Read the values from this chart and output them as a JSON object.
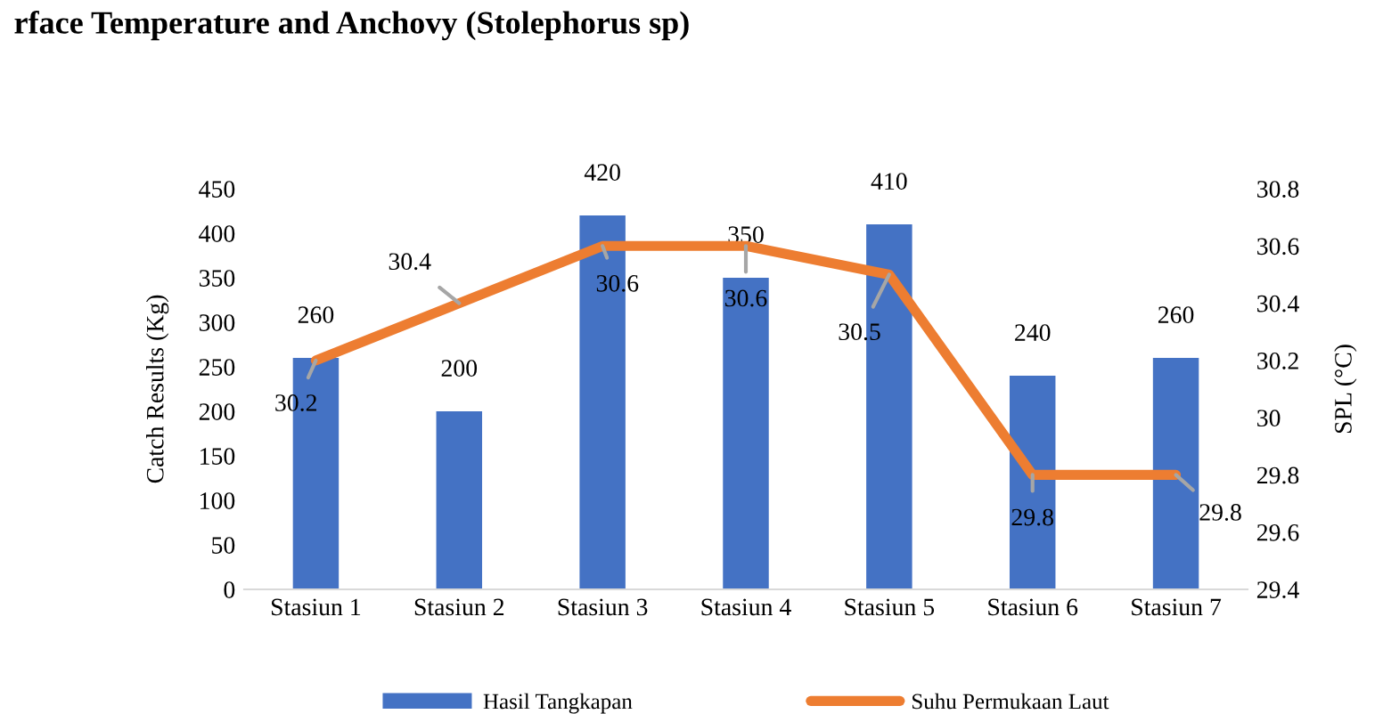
{
  "chart_data": {
    "type": "bar",
    "title": "rface Temperature and Anchovy (Stolephorus sp)",
    "categories": [
      "Stasiun 1",
      "Stasiun 2",
      "Stasiun 3",
      "Stasiun 4",
      "Stasiun 5",
      "Stasiun 6",
      "Stasiun 7"
    ],
    "series": [
      {
        "name": "Hasil Tangkapan",
        "color": "#4472c4",
        "values": [
          260,
          200,
          420,
          350,
          410,
          240,
          260
        ]
      },
      {
        "name": "Suhu Permukaan Laut",
        "type": "line",
        "axis": "y2",
        "color": "#ed7d31",
        "marker": "none",
        "values": [
          30.2,
          30.4,
          30.6,
          30.6,
          30.5,
          29.8,
          29.8
        ]
      }
    ],
    "ylabel": "Catch Results (Kg)",
    "y2label": "SPL (°C)",
    "ylim": [
      0,
      450
    ],
    "yticks": [
      0,
      50,
      100,
      150,
      200,
      250,
      300,
      350,
      400,
      450
    ],
    "y2lim": [
      29.4,
      30.8
    ],
    "y2ticks": [
      29.4,
      29.6,
      29.8,
      30,
      30.2,
      30.4,
      30.6,
      30.8
    ],
    "data_labels": true,
    "grid": false,
    "legend": "bottom"
  }
}
